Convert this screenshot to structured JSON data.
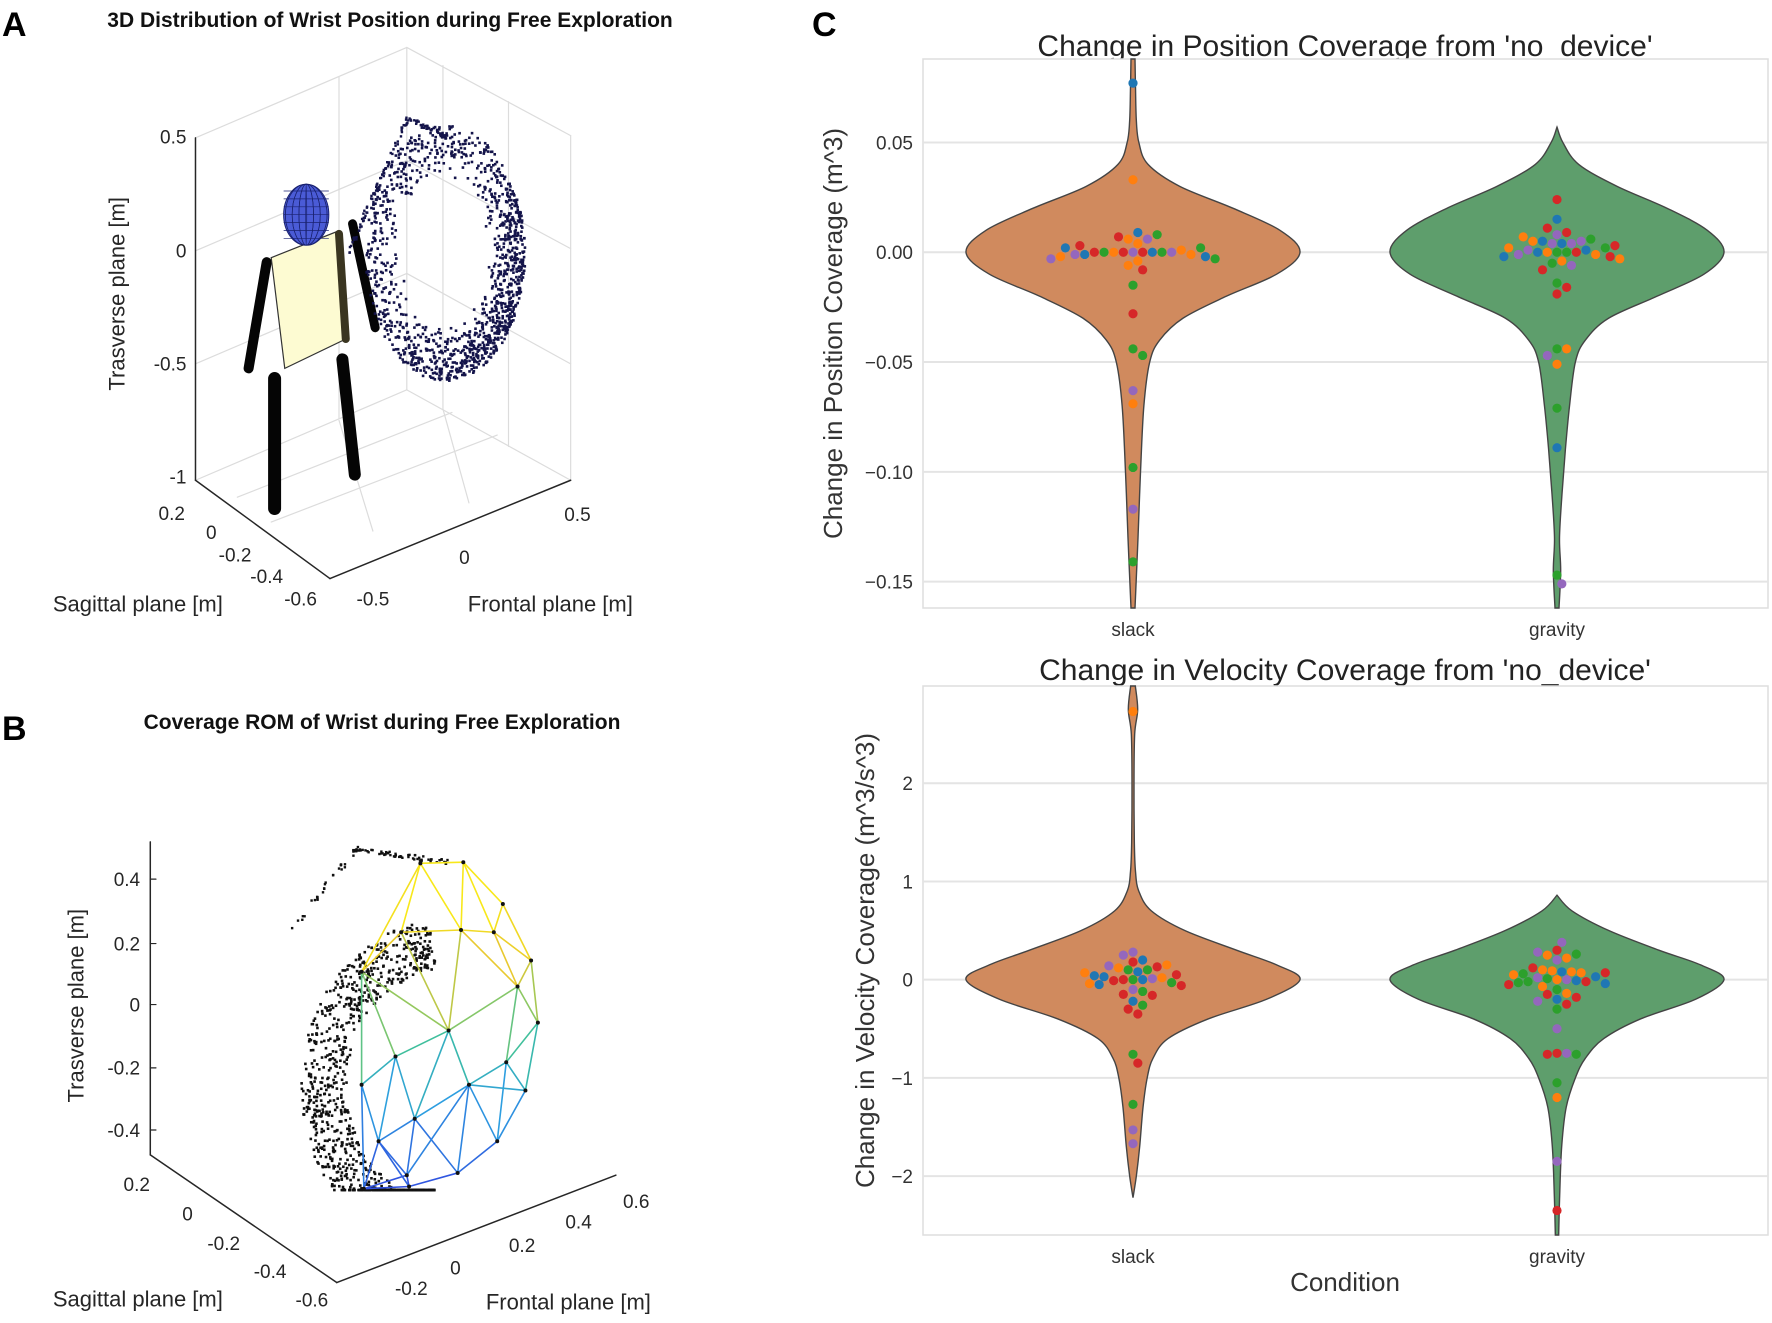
{
  "panels": {
    "a": "A",
    "b": "B",
    "c": "C"
  },
  "chart_data": [
    {
      "id": "a",
      "type": "scatter3d",
      "title": "3D Distribution of Wrist Position during Free Exploration",
      "xlabel": "Sagittal plane [m]",
      "ylabel": "Frontal plane [m]",
      "zlabel": "Trasverse plane [m]",
      "xticks": [
        "0.2",
        "0",
        "-0.2",
        "-0.4",
        "-0.6"
      ],
      "yticks": [
        "-0.5",
        "0",
        "0.5"
      ],
      "zticks": [
        "0.5",
        "0",
        "-0.5",
        "-1"
      ],
      "grid": true,
      "marker_color": "#14144a",
      "head_color": "#4a5bd6",
      "torso_color": "#fdfbd2"
    },
    {
      "id": "b",
      "type": "scatter3d",
      "title": "Coverage ROM of Wrist during Free Exploration",
      "xlabel": "Sagittal plane [m]",
      "ylabel": "Frontal plane [m]",
      "zlabel": "Trasverse plane [m]",
      "xticks": [
        "0.2",
        "0",
        "-0.2",
        "-0.4",
        "-0.6"
      ],
      "yticks": [
        "-0.2",
        "0",
        "0.2",
        "0.4",
        "0.6"
      ],
      "zticks": [
        "0.4",
        "0.2",
        "0",
        "-0.2",
        "-0.4"
      ],
      "grid": false,
      "marker_color": "#111111"
    },
    {
      "id": "c-top",
      "type": "violin",
      "title": "Change in Position Coverage from 'no_device'",
      "xlabel": "",
      "ylabel": "Change in Position Coverage (m^3)",
      "categories": [
        "slack",
        "gravity"
      ],
      "ylim": [
        -0.162,
        0.088
      ],
      "yticks": [
        0.05,
        0.0,
        -0.05,
        -0.1,
        -0.15
      ],
      "ytick_labels": [
        "0.05",
        "0.00",
        "−0.05",
        "−0.10",
        "−0.15"
      ],
      "point_colors": {
        "b": "#1f77b4",
        "o": "#ff7f0e",
        "g": "#2ca02c",
        "r": "#d62728",
        "p": "#9467bd"
      },
      "series": [
        {
          "name": "slack",
          "color": "#d08a5e",
          "density": [
            [
              0.088,
              0.012
            ],
            [
              0.075,
              0.015
            ],
            [
              0.06,
              0.02
            ],
            [
              0.05,
              0.035
            ],
            [
              0.04,
              0.09
            ],
            [
              0.03,
              0.28
            ],
            [
              0.02,
              0.6
            ],
            [
              0.01,
              0.88
            ],
            [
              0.0,
              1.0
            ],
            [
              -0.01,
              0.86
            ],
            [
              -0.02,
              0.56
            ],
            [
              -0.03,
              0.3
            ],
            [
              -0.04,
              0.16
            ],
            [
              -0.05,
              0.1
            ],
            [
              -0.07,
              0.065
            ],
            [
              -0.1,
              0.045
            ],
            [
              -0.13,
              0.03
            ],
            [
              -0.162,
              0.012
            ]
          ],
          "points": [
            [
              0.077,
              "b"
            ],
            [
              0.033,
              "o"
            ],
            [
              0.009,
              "b"
            ],
            [
              0.008,
              "g"
            ],
            [
              0.007,
              "r"
            ],
            [
              0.006,
              "o"
            ],
            [
              0.006,
              "p"
            ],
            [
              0.004,
              "o"
            ],
            [
              0.003,
              "r"
            ],
            [
              0.002,
              "g"
            ],
            [
              0.002,
              "b"
            ],
            [
              0.001,
              "o"
            ],
            [
              0.0,
              "p"
            ],
            [
              0.0,
              "r"
            ],
            [
              0.0,
              "r"
            ],
            [
              0.0,
              "b"
            ],
            [
              0.0,
              "o"
            ],
            [
              0.0,
              "g"
            ],
            [
              0.0,
              "g"
            ],
            [
              0.0,
              "p"
            ],
            [
              0.0,
              "r"
            ],
            [
              -0.001,
              "b"
            ],
            [
              -0.001,
              "o"
            ],
            [
              -0.001,
              "p"
            ],
            [
              -0.002,
              "b"
            ],
            [
              -0.002,
              "o"
            ],
            [
              -0.003,
              "g"
            ],
            [
              -0.003,
              "p"
            ],
            [
              -0.004,
              "o"
            ],
            [
              -0.006,
              "o"
            ],
            [
              -0.008,
              "r"
            ],
            [
              -0.015,
              "g"
            ],
            [
              -0.028,
              "r"
            ],
            [
              -0.044,
              "g"
            ],
            [
              -0.047,
              "g"
            ],
            [
              -0.063,
              "p"
            ],
            [
              -0.069,
              "o"
            ],
            [
              -0.098,
              "g"
            ],
            [
              -0.117,
              "p"
            ],
            [
              -0.141,
              "g"
            ]
          ]
        },
        {
          "name": "gravity",
          "color": "#5e9e6c",
          "density": [
            [
              0.057,
              0.0
            ],
            [
              0.05,
              0.035
            ],
            [
              0.04,
              0.13
            ],
            [
              0.03,
              0.36
            ],
            [
              0.02,
              0.66
            ],
            [
              0.01,
              0.9
            ],
            [
              0.0,
              1.0
            ],
            [
              -0.01,
              0.88
            ],
            [
              -0.02,
              0.6
            ],
            [
              -0.03,
              0.31
            ],
            [
              -0.04,
              0.17
            ],
            [
              -0.05,
              0.11
            ],
            [
              -0.07,
              0.075
            ],
            [
              -0.09,
              0.05
            ],
            [
              -0.11,
              0.03
            ],
            [
              -0.13,
              0.015
            ],
            [
              -0.145,
              0.022
            ],
            [
              -0.162,
              0.012
            ]
          ],
          "points": [
            [
              0.024,
              "r"
            ],
            [
              0.015,
              "b"
            ],
            [
              0.011,
              "r"
            ],
            [
              0.009,
              "r"
            ],
            [
              0.008,
              "p"
            ],
            [
              0.007,
              "o"
            ],
            [
              0.006,
              "g"
            ],
            [
              0.005,
              "b"
            ],
            [
              0.005,
              "p"
            ],
            [
              0.005,
              "o"
            ],
            [
              0.004,
              "b"
            ],
            [
              0.004,
              "p"
            ],
            [
              0.004,
              "p"
            ],
            [
              0.003,
              "r"
            ],
            [
              0.002,
              "g"
            ],
            [
              0.002,
              "o"
            ],
            [
              0.001,
              "b"
            ],
            [
              0.001,
              "p"
            ],
            [
              0.0,
              "g"
            ],
            [
              0.0,
              "g"
            ],
            [
              0.0,
              "o"
            ],
            [
              0.0,
              "r"
            ],
            [
              0.0,
              "b"
            ],
            [
              -0.001,
              "o"
            ],
            [
              -0.001,
              "p"
            ],
            [
              -0.002,
              "r"
            ],
            [
              -0.002,
              "b"
            ],
            [
              -0.003,
              "o"
            ],
            [
              -0.004,
              "o"
            ],
            [
              -0.005,
              "g"
            ],
            [
              -0.006,
              "p"
            ],
            [
              -0.008,
              "r"
            ],
            [
              -0.014,
              "g"
            ],
            [
              -0.016,
              "r"
            ],
            [
              -0.019,
              "r"
            ],
            [
              -0.044,
              "g"
            ],
            [
              -0.044,
              "o"
            ],
            [
              -0.047,
              "p"
            ],
            [
              -0.051,
              "o"
            ],
            [
              -0.071,
              "g"
            ],
            [
              -0.089,
              "b"
            ],
            [
              -0.147,
              "g"
            ],
            [
              -0.151,
              "p"
            ]
          ]
        }
      ]
    },
    {
      "id": "c-bottom",
      "type": "violin",
      "title": "Change in Velocity Coverage from 'no_device'",
      "xlabel": "Condition",
      "ylabel": "Change in Velocity Coverage (m^3/s^3)",
      "categories": [
        "slack",
        "gravity"
      ],
      "ylim": [
        -2.6,
        2.99
      ],
      "yticks": [
        2,
        1,
        0,
        -1,
        -2
      ],
      "ytick_labels": [
        "2",
        "1",
        "0",
        "−1",
        "−2"
      ],
      "point_colors": {
        "b": "#1f77b4",
        "o": "#ff7f0e",
        "g": "#2ca02c",
        "r": "#d62728",
        "p": "#9467bd"
      },
      "series": [
        {
          "name": "slack",
          "color": "#d08a5e",
          "density": [
            [
              2.99,
              0.014
            ],
            [
              2.75,
              0.028
            ],
            [
              2.5,
              0.01
            ],
            [
              2.0,
              0.006
            ],
            [
              1.4,
              0.008
            ],
            [
              1.1,
              0.015
            ],
            [
              0.9,
              0.035
            ],
            [
              0.7,
              0.11
            ],
            [
              0.5,
              0.31
            ],
            [
              0.3,
              0.62
            ],
            [
              0.15,
              0.86
            ],
            [
              0.0,
              1.0
            ],
            [
              -0.2,
              0.8
            ],
            [
              -0.4,
              0.45
            ],
            [
              -0.6,
              0.21
            ],
            [
              -0.8,
              0.12
            ],
            [
              -1.0,
              0.085
            ],
            [
              -1.3,
              0.06
            ],
            [
              -1.7,
              0.04
            ],
            [
              -2.0,
              0.02
            ],
            [
              -2.22,
              0.0
            ]
          ],
          "points": [
            [
              2.73,
              "o"
            ],
            [
              0.28,
              "p"
            ],
            [
              0.25,
              "p"
            ],
            [
              0.2,
              "b"
            ],
            [
              0.18,
              "r"
            ],
            [
              0.15,
              "o"
            ],
            [
              0.14,
              "p"
            ],
            [
              0.13,
              "r"
            ],
            [
              0.12,
              "o"
            ],
            [
              0.1,
              "g"
            ],
            [
              0.1,
              "g"
            ],
            [
              0.08,
              "b"
            ],
            [
              0.07,
              "o"
            ],
            [
              0.05,
              "r"
            ],
            [
              0.04,
              "b"
            ],
            [
              0.03,
              "b"
            ],
            [
              0.02,
              "o"
            ],
            [
              0.01,
              "p"
            ],
            [
              0.0,
              "g"
            ],
            [
              0.0,
              "b"
            ],
            [
              0.0,
              "r"
            ],
            [
              -0.01,
              "r"
            ],
            [
              -0.03,
              "g"
            ],
            [
              -0.04,
              "o"
            ],
            [
              -0.05,
              "b"
            ],
            [
              -0.06,
              "r"
            ],
            [
              -0.1,
              "p"
            ],
            [
              -0.12,
              "g"
            ],
            [
              -0.15,
              "r"
            ],
            [
              -0.16,
              "r"
            ],
            [
              -0.22,
              "b"
            ],
            [
              -0.26,
              "g"
            ],
            [
              -0.3,
              "r"
            ],
            [
              -0.35,
              "r"
            ],
            [
              -0.76,
              "g"
            ],
            [
              -0.85,
              "r"
            ],
            [
              -1.27,
              "g"
            ],
            [
              -1.53,
              "p"
            ],
            [
              -1.67,
              "p"
            ]
          ]
        },
        {
          "name": "gravity",
          "color": "#5e9e6c",
          "density": [
            [
              0.86,
              0.0
            ],
            [
              0.7,
              0.09
            ],
            [
              0.5,
              0.31
            ],
            [
              0.3,
              0.61
            ],
            [
              0.15,
              0.86
            ],
            [
              0.0,
              1.0
            ],
            [
              -0.2,
              0.83
            ],
            [
              -0.4,
              0.5
            ],
            [
              -0.6,
              0.28
            ],
            [
              -0.8,
              0.17
            ],
            [
              -1.0,
              0.11
            ],
            [
              -1.3,
              0.055
            ],
            [
              -1.7,
              0.028
            ],
            [
              -2.2,
              0.016
            ],
            [
              -2.6,
              0.01
            ]
          ],
          "points": [
            [
              0.38,
              "p"
            ],
            [
              0.3,
              "r"
            ],
            [
              0.28,
              "p"
            ],
            [
              0.26,
              "g"
            ],
            [
              0.25,
              "o"
            ],
            [
              0.22,
              "o"
            ],
            [
              0.2,
              "p"
            ],
            [
              0.12,
              "r"
            ],
            [
              0.1,
              "o"
            ],
            [
              0.09,
              "o"
            ],
            [
              0.08,
              "b"
            ],
            [
              0.08,
              "o"
            ],
            [
              0.07,
              "o"
            ],
            [
              0.07,
              "r"
            ],
            [
              0.06,
              "g"
            ],
            [
              0.05,
              "o"
            ],
            [
              0.03,
              "b"
            ],
            [
              0.02,
              "p"
            ],
            [
              0.01,
              "g"
            ],
            [
              0.0,
              "o"
            ],
            [
              0.0,
              "p"
            ],
            [
              -0.01,
              "b"
            ],
            [
              -0.02,
              "r"
            ],
            [
              -0.02,
              "g"
            ],
            [
              -0.03,
              "g"
            ],
            [
              -0.04,
              "b"
            ],
            [
              -0.05,
              "r"
            ],
            [
              -0.07,
              "o"
            ],
            [
              -0.1,
              "g"
            ],
            [
              -0.14,
              "o"
            ],
            [
              -0.15,
              "r"
            ],
            [
              -0.18,
              "r"
            ],
            [
              -0.2,
              "b"
            ],
            [
              -0.22,
              "p"
            ],
            [
              -0.25,
              "r"
            ],
            [
              -0.3,
              "g"
            ],
            [
              -0.5,
              "p"
            ],
            [
              -0.75,
              "r"
            ],
            [
              -0.76,
              "r"
            ],
            [
              -0.76,
              "g"
            ],
            [
              -0.75,
              "p"
            ],
            [
              -1.05,
              "g"
            ],
            [
              -1.2,
              "o"
            ],
            [
              -1.85,
              "p"
            ],
            [
              -2.35,
              "r"
            ]
          ]
        }
      ]
    }
  ]
}
